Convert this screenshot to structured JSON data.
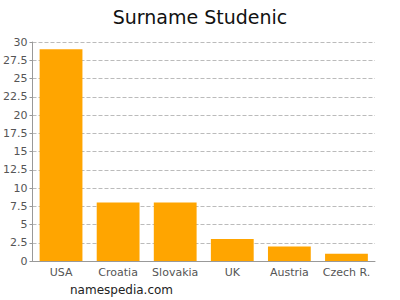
{
  "chart_data": {
    "type": "bar",
    "title": "Surname Studenic",
    "categories": [
      "USA",
      "Croatia",
      "Slovakia",
      "UK",
      "Austria",
      "Czech R."
    ],
    "values": [
      29,
      8,
      8,
      3,
      2,
      1
    ],
    "color": "#ffa500",
    "ylim": [
      0,
      30
    ],
    "yticks": [
      0,
      2.5,
      5,
      7.5,
      10,
      12.5,
      15,
      17.5,
      20,
      22.5,
      25,
      27.5,
      30
    ],
    "grid": true,
    "annotations": [
      "namespedia.com"
    ]
  }
}
